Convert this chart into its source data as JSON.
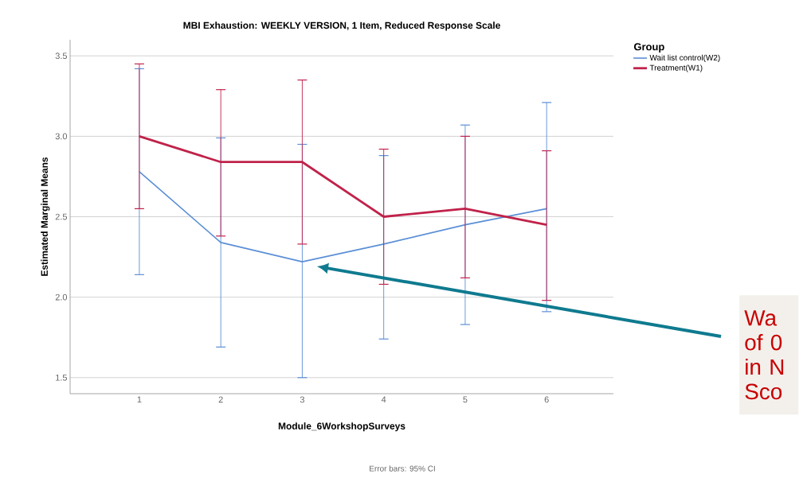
{
  "chart_data": {
    "type": "line",
    "title": "MBI Exhaustion: WEEKLY VERSION, 1 Item, Reduced Response Scale",
    "xlabel": "Module_6WorkshopSurveys",
    "ylabel": "Estimated Marginal Means",
    "legend_title": "Group",
    "categories": [
      "1",
      "2",
      "3",
      "4",
      "5",
      "6"
    ],
    "series": [
      {
        "name": "Wait list control(W2)",
        "color": "#5b8fd6",
        "values": [
          2.78,
          2.34,
          2.22,
          2.33,
          2.45,
          2.55
        ],
        "errors": [
          [
            2.14,
            3.42
          ],
          [
            1.69,
            2.99
          ],
          [
            1.5,
            2.95
          ],
          [
            1.74,
            2.88
          ],
          [
            1.83,
            3.07
          ],
          [
            1.91,
            3.21
          ]
        ]
      },
      {
        "name": "Treatment(W1)",
        "color": "#c0224a",
        "values": [
          3.0,
          2.84,
          2.84,
          2.5,
          2.55,
          2.45
        ],
        "errors": [
          [
            2.55,
            3.45
          ],
          [
            2.38,
            3.29
          ],
          [
            2.33,
            3.35
          ],
          [
            2.08,
            2.92
          ],
          [
            2.12,
            3.0
          ],
          [
            1.98,
            2.91
          ]
        ]
      }
    ],
    "ylim": [
      1.4,
      3.6
    ],
    "yticks": [
      {
        "value": 1.5,
        "label": "1.5"
      },
      {
        "value": 2.0,
        "label": "2.0"
      },
      {
        "value": 2.5,
        "label": "2.5"
      },
      {
        "value": 3.0,
        "label": "3.0"
      },
      {
        "value": 3.5,
        "label": "3.5"
      }
    ],
    "grid": "y",
    "legend": "top right",
    "marker": "none",
    "line_style": "solid",
    "annotations": [
      "Error bars: 95% CI",
      "Wa of 0 in N Sco"
    ]
  }
}
